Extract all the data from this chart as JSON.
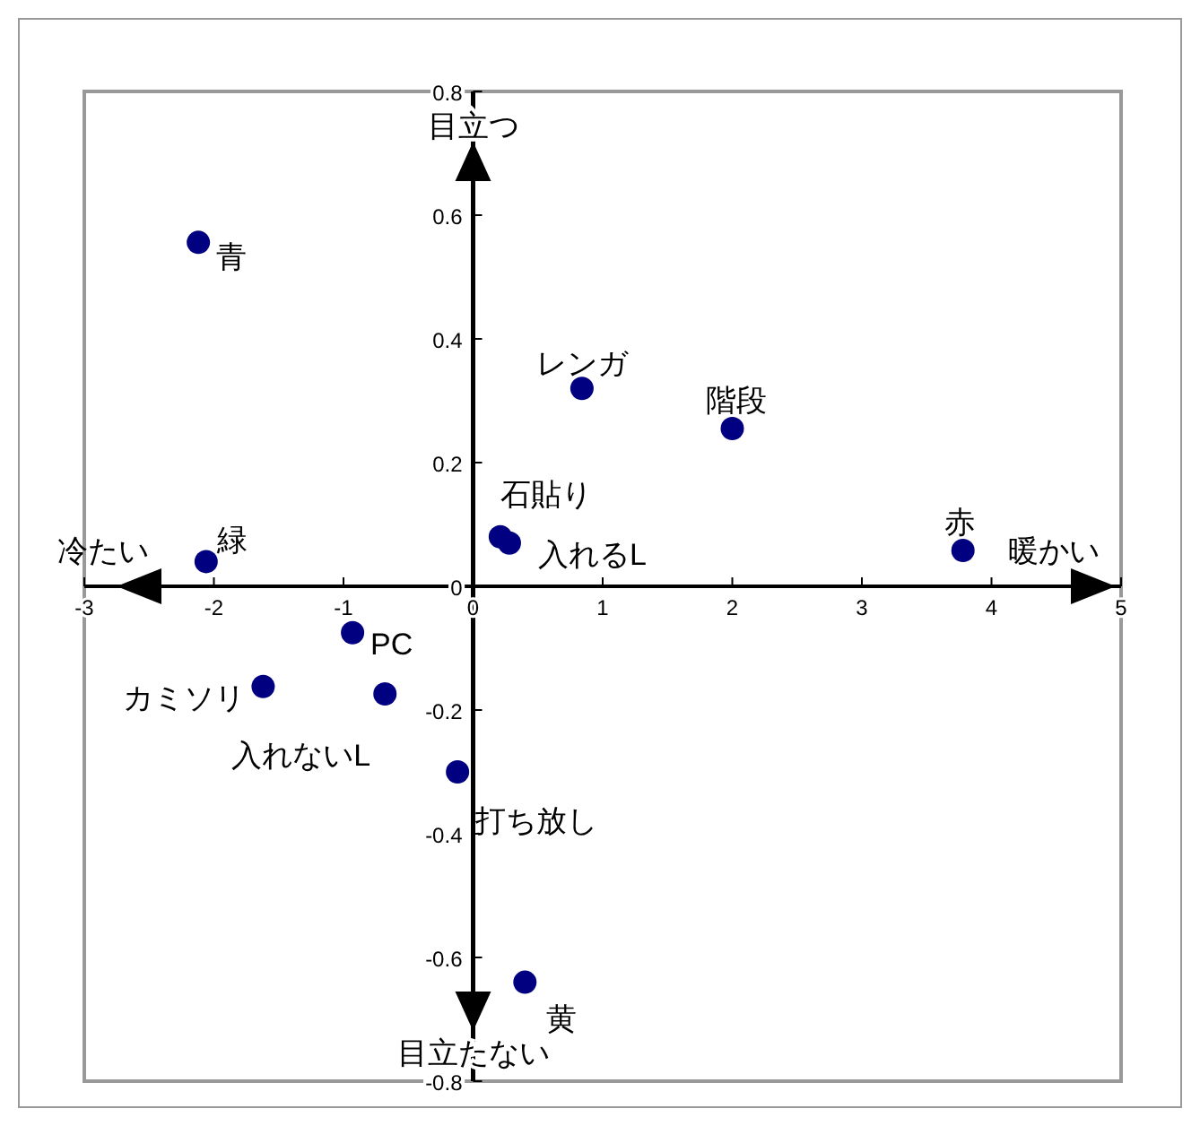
{
  "chart_data": {
    "type": "scatter",
    "color": "#000080",
    "marker": "circle",
    "grid": false,
    "xlim": [
      -3,
      5
    ],
    "ylim": [
      -0.8,
      0.8
    ],
    "xticks": [
      -3,
      -2,
      -1,
      0,
      1,
      2,
      3,
      4,
      5
    ],
    "yticks": [
      -0.8,
      -0.6,
      -0.4,
      -0.2,
      0,
      0.2,
      0.4,
      0.6,
      0.8
    ],
    "x": [
      -2.12,
      -2.06,
      0.84,
      2.0,
      0.21,
      0.28,
      3.78,
      -0.93,
      -1.62,
      -0.68,
      -0.12,
      0.4
    ],
    "values": [
      0.556,
      0.04,
      0.32,
      0.255,
      0.08,
      0.07,
      0.058,
      -0.075,
      -0.162,
      -0.174,
      -0.3,
      -0.64
    ],
    "annotations": [
      {
        "text": "青",
        "x": -2.12,
        "y": 0.556
      },
      {
        "text": "緑",
        "x": -2.06,
        "y": 0.04
      },
      {
        "text": "レンガ",
        "x": 0.84,
        "y": 0.32
      },
      {
        "text": "階段",
        "x": 2.0,
        "y": 0.255
      },
      {
        "text": "石貼り",
        "x": 0.21,
        "y": 0.08
      },
      {
        "text": "入れるL",
        "x": 0.28,
        "y": 0.07
      },
      {
        "text": "赤",
        "x": 3.78,
        "y": 0.058
      },
      {
        "text": "PC",
        "x": -0.93,
        "y": -0.075
      },
      {
        "text": "カミソリ",
        "x": -1.62,
        "y": -0.162
      },
      {
        "text": "入れないL",
        "x": -0.68,
        "y": -0.174
      },
      {
        "text": "打ち放し",
        "x": -0.12,
        "y": -0.3
      },
      {
        "text": "黄",
        "x": 0.4,
        "y": -0.64
      },
      "目立つ",
      "目立たない",
      "冷たい",
      "暖かい"
    ]
  }
}
